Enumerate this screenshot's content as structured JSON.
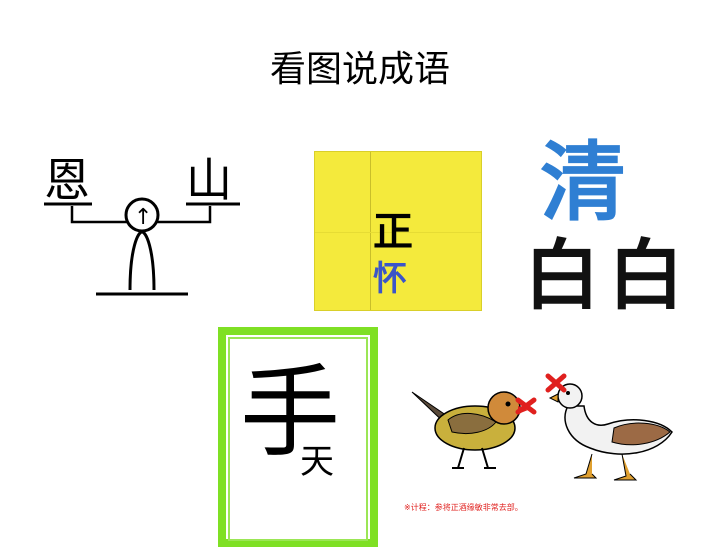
{
  "slide": {
    "title": "看图说成语"
  },
  "puzzles": {
    "scale": {
      "left": "恩",
      "right": "山",
      "pivot": "↑"
    },
    "yellow": {
      "top": "正",
      "bottom": "怀"
    },
    "qing": {
      "top": "清",
      "bottom_left": "白",
      "bottom_right": "白"
    },
    "hand": {
      "big": "手",
      "small": "天"
    },
    "birds": {
      "caption": "※计程：参将正酒缘敏非常去部。"
    }
  },
  "colors": {
    "yellow_bg": "#f4ea3c",
    "qing_blue": "#2f7fd3",
    "hand_border": "#7fe024",
    "red": "#e0201e",
    "huai_blue": "#3b55c8"
  }
}
